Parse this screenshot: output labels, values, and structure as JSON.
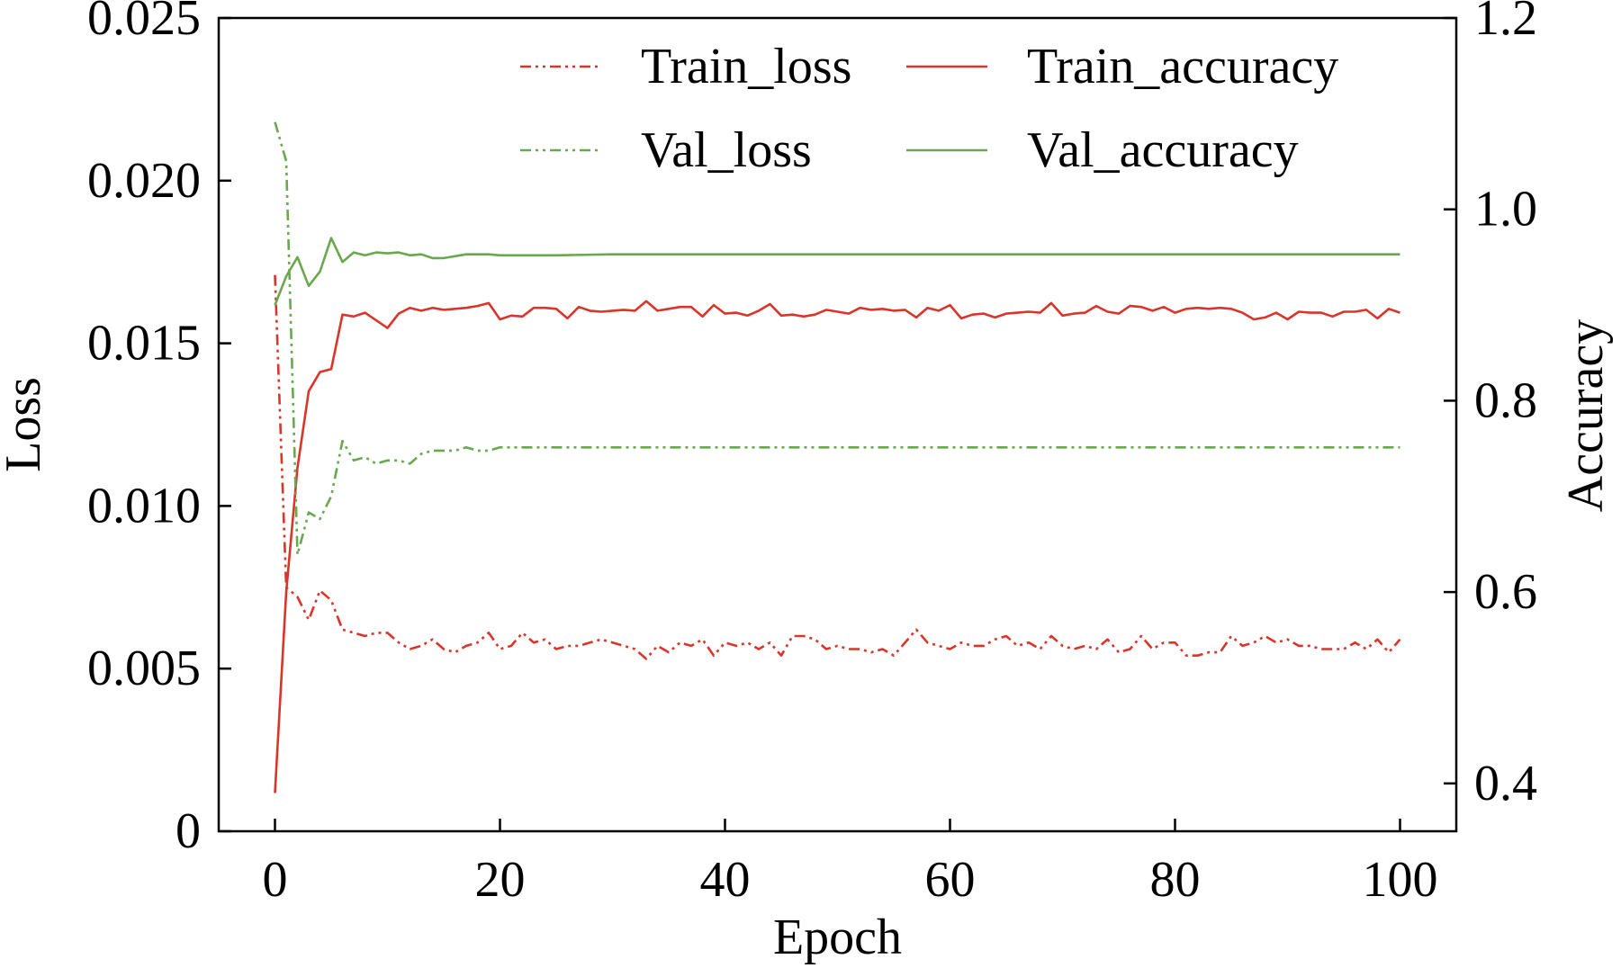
{
  "chart_data": {
    "type": "line",
    "xlabel": "Epoch",
    "ylabel": "Loss",
    "y2label": "Accuracy",
    "xlim": [
      -5,
      105
    ],
    "ylim": [
      0,
      0.025
    ],
    "y2lim": [
      0.35,
      1.2
    ],
    "xticks": [
      0,
      20,
      40,
      60,
      80,
      100
    ],
    "xtick_labels": [
      "0",
      "20",
      "40",
      "60",
      "80",
      "100"
    ],
    "yticks": [
      0,
      0.005,
      0.01,
      0.015,
      0.02,
      0.025
    ],
    "ytick_labels": [
      "0",
      "0.005",
      "0.010",
      "0.015",
      "0.020",
      "0.025"
    ],
    "y2ticks": [
      0.4,
      0.6,
      0.8,
      1.0,
      1.2
    ],
    "y2tick_labels": [
      "0.4",
      "0.6",
      "0.8",
      "1.0",
      "1.2"
    ],
    "grid": false,
    "legend_position": "top-right",
    "colors": {
      "train": "#d9352b",
      "val": "#6aa84f"
    },
    "series": [
      {
        "name": "Train_loss",
        "axis": "left",
        "style": "dashdotdot",
        "color": "#d9352b",
        "x": [
          0,
          1,
          2,
          3,
          4,
          5,
          6,
          7,
          8,
          9,
          10,
          11,
          12,
          13,
          14,
          15,
          16,
          17,
          18,
          19,
          20,
          21,
          22,
          23,
          24,
          25,
          26,
          27,
          28,
          29,
          30,
          31,
          32,
          33,
          34,
          35,
          36,
          37,
          38,
          39,
          40,
          41,
          42,
          43,
          44,
          45,
          46,
          47,
          48,
          49,
          50,
          51,
          52,
          53,
          54,
          55,
          56,
          57,
          58,
          59,
          60,
          61,
          62,
          63,
          64,
          65,
          66,
          67,
          68,
          69,
          70,
          71,
          72,
          73,
          74,
          75,
          76,
          77,
          78,
          79,
          80,
          81,
          82,
          83,
          84,
          85,
          86,
          87,
          88,
          89,
          90,
          91,
          92,
          93,
          94,
          95,
          96,
          97,
          98,
          99,
          100
        ],
        "values": [
          0.0171,
          0.0075,
          0.0072,
          0.0065,
          0.0074,
          0.0071,
          0.0062,
          0.0061,
          0.006,
          0.0061,
          0.0061,
          0.0058,
          0.0056,
          0.0057,
          0.0059,
          0.0056,
          0.0055,
          0.0057,
          0.0058,
          0.0061,
          0.0056,
          0.0057,
          0.0061,
          0.0058,
          0.0059,
          0.0056,
          0.0057,
          0.0057,
          0.0058,
          0.0059,
          0.0058,
          0.0057,
          0.0056,
          0.0053,
          0.0057,
          0.0055,
          0.0058,
          0.0057,
          0.0059,
          0.0054,
          0.0058,
          0.0057,
          0.0058,
          0.0056,
          0.0058,
          0.0054,
          0.006,
          0.006,
          0.0059,
          0.0056,
          0.0057,
          0.0056,
          0.0056,
          0.0055,
          0.0056,
          0.0054,
          0.0058,
          0.0062,
          0.0058,
          0.0057,
          0.0056,
          0.0058,
          0.0057,
          0.0057,
          0.0059,
          0.006,
          0.0057,
          0.0058,
          0.0056,
          0.006,
          0.0057,
          0.0056,
          0.0057,
          0.0056,
          0.0059,
          0.0055,
          0.0056,
          0.006,
          0.0056,
          0.0058,
          0.0058,
          0.0054,
          0.0054,
          0.0055,
          0.0055,
          0.006,
          0.0057,
          0.0058,
          0.006,
          0.0058,
          0.0059,
          0.0057,
          0.0057,
          0.0056,
          0.0056,
          0.0056,
          0.0058,
          0.0056,
          0.0059,
          0.0055,
          0.0059
        ]
      },
      {
        "name": "Train_accuracy",
        "axis": "right",
        "style": "solid",
        "color": "#d9352b",
        "x": [
          0,
          1,
          2,
          3,
          4,
          5,
          6,
          7,
          8,
          9,
          10,
          11,
          12,
          13,
          14,
          15,
          16,
          17,
          18,
          19,
          20,
          21,
          22,
          23,
          24,
          25,
          26,
          27,
          28,
          29,
          30,
          31,
          32,
          33,
          34,
          35,
          36,
          37,
          38,
          39,
          40,
          41,
          42,
          43,
          44,
          45,
          46,
          47,
          48,
          49,
          50,
          51,
          52,
          53,
          54,
          55,
          56,
          57,
          58,
          59,
          60,
          61,
          62,
          63,
          64,
          65,
          66,
          67,
          68,
          69,
          70,
          71,
          72,
          73,
          74,
          75,
          76,
          77,
          78,
          79,
          80,
          81,
          82,
          83,
          84,
          85,
          86,
          87,
          88,
          89,
          90,
          91,
          92,
          93,
          94,
          95,
          96,
          97,
          98,
          99,
          100
        ],
        "values": [
          0.39,
          0.6,
          0.73,
          0.81,
          0.83,
          0.833,
          0.89,
          0.888,
          0.892,
          0.884,
          0.876,
          0.891,
          0.897,
          0.894,
          0.897,
          0.895,
          0.896,
          0.897,
          0.899,
          0.902,
          0.885,
          0.889,
          0.888,
          0.897,
          0.897,
          0.896,
          0.886,
          0.898,
          0.894,
          0.893,
          0.894,
          0.895,
          0.894,
          0.904,
          0.894,
          0.896,
          0.898,
          0.898,
          0.888,
          0.9,
          0.891,
          0.892,
          0.889,
          0.894,
          0.901,
          0.889,
          0.89,
          0.888,
          0.89,
          0.895,
          0.893,
          0.891,
          0.897,
          0.895,
          0.896,
          0.894,
          0.895,
          0.887,
          0.897,
          0.894,
          0.9,
          0.886,
          0.89,
          0.891,
          0.887,
          0.891,
          0.892,
          0.893,
          0.892,
          0.902,
          0.889,
          0.891,
          0.892,
          0.899,
          0.893,
          0.891,
          0.899,
          0.898,
          0.894,
          0.898,
          0.892,
          0.896,
          0.897,
          0.896,
          0.897,
          0.896,
          0.892,
          0.885,
          0.887,
          0.892,
          0.885,
          0.893,
          0.892,
          0.892,
          0.888,
          0.893,
          0.893,
          0.895,
          0.886,
          0.896,
          0.892
        ]
      },
      {
        "name": "Val_loss",
        "axis": "left",
        "style": "dashdotdot",
        "color": "#6aa84f",
        "x": [
          0,
          1,
          2,
          3,
          4,
          5,
          6,
          7,
          8,
          9,
          10,
          11,
          12,
          13,
          14,
          15,
          16,
          17,
          18,
          19,
          20,
          25,
          30,
          40,
          50,
          60,
          70,
          80,
          90,
          100
        ],
        "values": [
          0.0218,
          0.0206,
          0.0085,
          0.0098,
          0.0096,
          0.0103,
          0.012,
          0.0114,
          0.0115,
          0.0113,
          0.0114,
          0.0114,
          0.0113,
          0.0116,
          0.0117,
          0.0117,
          0.0117,
          0.0118,
          0.0117,
          0.0117,
          0.0118,
          0.0118,
          0.0118,
          0.0118,
          0.0118,
          0.0118,
          0.0118,
          0.0118,
          0.0118,
          0.0118
        ]
      },
      {
        "name": "Val_accuracy",
        "axis": "right",
        "style": "solid",
        "color": "#6aa84f",
        "x": [
          0,
          1,
          2,
          3,
          4,
          5,
          6,
          7,
          8,
          9,
          10,
          11,
          12,
          13,
          14,
          15,
          16,
          17,
          18,
          19,
          20,
          25,
          30,
          40,
          50,
          60,
          70,
          80,
          90,
          100
        ],
        "values": [
          0.9,
          0.93,
          0.95,
          0.92,
          0.935,
          0.97,
          0.945,
          0.955,
          0.952,
          0.955,
          0.954,
          0.955,
          0.952,
          0.953,
          0.949,
          0.949,
          0.951,
          0.953,
          0.953,
          0.953,
          0.952,
          0.952,
          0.953,
          0.953,
          0.953,
          0.953,
          0.953,
          0.953,
          0.953,
          0.953
        ]
      }
    ]
  }
}
